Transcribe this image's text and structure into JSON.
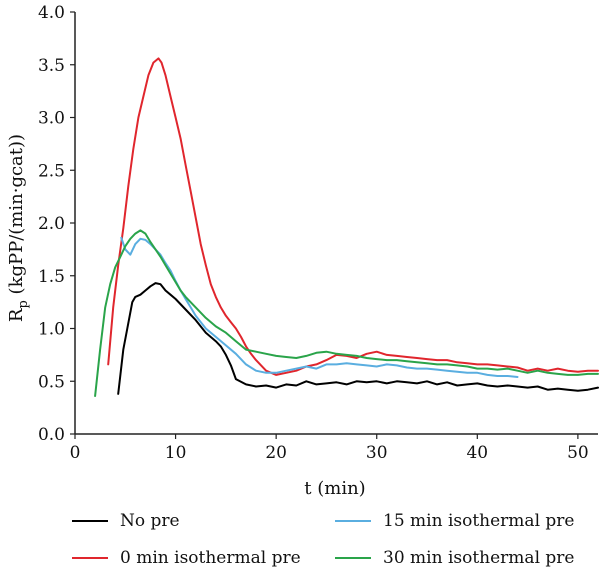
{
  "chart_data": {
    "type": "line",
    "title": "",
    "xlabel": "t (min)",
    "ylabel": "R",
    "ylabel_sub": "p",
    "ylabel_rest": " (kgPP/(min·gcat))",
    "xlim": [
      0,
      52
    ],
    "ylim": [
      0,
      4.0
    ],
    "xticks": [
      "0",
      "10",
      "20",
      "30",
      "40",
      "50"
    ],
    "xtick_values": [
      0,
      10,
      20,
      30,
      40,
      50
    ],
    "yticks": [
      "0.0",
      "0.5",
      "1.0",
      "1.5",
      "2.0",
      "2.5",
      "3.0",
      "3.5",
      "4.0"
    ],
    "ytick_values": [
      0,
      0.5,
      1.0,
      1.5,
      2.0,
      2.5,
      3.0,
      3.5,
      4.0
    ],
    "grid": false,
    "legend_position": "bottom",
    "series": [
      {
        "name": "No pre",
        "color": "#000000",
        "x": [
          4.3,
          4.8,
          5.2,
          5.7,
          6.0,
          6.5,
          7.0,
          7.5,
          8.0,
          8.5,
          9.0,
          9.5,
          10.0,
          11.0,
          12.0,
          13.0,
          14.0,
          14.5,
          15.0,
          15.5,
          16.0,
          17.0,
          18.0,
          19.0,
          20.0,
          21.0,
          22.0,
          23.0,
          24.0,
          25.0,
          26.0,
          27.0,
          28.0,
          29.0,
          30.0,
          31.0,
          32.0,
          33.0,
          34.0,
          35.0,
          36.0,
          37.0,
          38.0,
          39.0,
          40.0,
          41.0,
          42.0,
          43.0,
          44.0,
          45.0,
          46.0,
          47.0,
          48.0,
          49.0,
          50.0,
          51.0,
          52.0
        ],
        "y": [
          0.38,
          0.8,
          1.0,
          1.25,
          1.3,
          1.32,
          1.36,
          1.4,
          1.43,
          1.42,
          1.36,
          1.32,
          1.28,
          1.18,
          1.08,
          0.96,
          0.88,
          0.83,
          0.75,
          0.65,
          0.52,
          0.47,
          0.45,
          0.46,
          0.44,
          0.47,
          0.46,
          0.5,
          0.47,
          0.48,
          0.49,
          0.47,
          0.5,
          0.49,
          0.5,
          0.48,
          0.5,
          0.49,
          0.48,
          0.5,
          0.47,
          0.49,
          0.46,
          0.47,
          0.48,
          0.46,
          0.45,
          0.46,
          0.45,
          0.44,
          0.45,
          0.42,
          0.43,
          0.42,
          0.41,
          0.42,
          0.44
        ]
      },
      {
        "name": "0 min isothermal pre",
        "color": "#e0262d",
        "x": [
          3.3,
          3.8,
          4.3,
          4.8,
          5.3,
          5.8,
          6.3,
          6.8,
          7.3,
          7.8,
          8.3,
          8.6,
          9.0,
          9.5,
          10.0,
          10.5,
          11.0,
          11.5,
          12.0,
          12.5,
          13.0,
          13.5,
          14.0,
          14.5,
          15.0,
          15.5,
          16.0,
          16.5,
          17.0,
          17.5,
          18.0,
          19.0,
          20.0,
          21.0,
          22.0,
          23.0,
          24.0,
          25.0,
          26.0,
          27.0,
          28.0,
          29.0,
          30.0,
          31.0,
          32.0,
          33.0,
          34.0,
          35.0,
          36.0,
          37.0,
          38.0,
          39.0,
          40.0,
          41.0,
          42.0,
          43.0,
          44.0,
          45.0,
          46.0,
          47.0,
          48.0,
          49.0,
          50.0,
          51.0,
          52.0
        ],
        "y": [
          0.66,
          1.2,
          1.6,
          1.95,
          2.35,
          2.7,
          3.0,
          3.2,
          3.4,
          3.52,
          3.56,
          3.52,
          3.4,
          3.2,
          3.0,
          2.8,
          2.55,
          2.3,
          2.05,
          1.8,
          1.6,
          1.42,
          1.3,
          1.2,
          1.12,
          1.06,
          1.0,
          0.92,
          0.83,
          0.76,
          0.7,
          0.6,
          0.56,
          0.58,
          0.6,
          0.64,
          0.66,
          0.7,
          0.75,
          0.74,
          0.72,
          0.76,
          0.78,
          0.75,
          0.74,
          0.73,
          0.72,
          0.71,
          0.7,
          0.7,
          0.68,
          0.67,
          0.66,
          0.66,
          0.65,
          0.64,
          0.63,
          0.6,
          0.62,
          0.6,
          0.62,
          0.6,
          0.59,
          0.6,
          0.6
        ]
      },
      {
        "name": "15 min isothermal pre",
        "color": "#5aaee0",
        "x": [
          4.6,
          5.0,
          5.5,
          6.0,
          6.5,
          7.0,
          7.5,
          8.0,
          8.5,
          9.0,
          9.5,
          10.0,
          10.5,
          11.0,
          11.5,
          12.0,
          13.0,
          14.0,
          15.0,
          16.0,
          17.0,
          18.0,
          19.0,
          20.0,
          21.0,
          22.0,
          23.0,
          24.0,
          25.0,
          26.0,
          27.0,
          28.0,
          29.0,
          30.0,
          31.0,
          32.0,
          33.0,
          34.0,
          35.0,
          36.0,
          37.0,
          38.0,
          39.0,
          40.0,
          41.0,
          42.0,
          43.0,
          44.0
        ],
        "y": [
          1.86,
          1.75,
          1.7,
          1.8,
          1.85,
          1.84,
          1.8,
          1.75,
          1.7,
          1.62,
          1.55,
          1.45,
          1.36,
          1.28,
          1.2,
          1.12,
          1.0,
          0.92,
          0.84,
          0.76,
          0.66,
          0.6,
          0.58,
          0.58,
          0.6,
          0.62,
          0.64,
          0.62,
          0.66,
          0.66,
          0.67,
          0.66,
          0.65,
          0.64,
          0.66,
          0.65,
          0.63,
          0.62,
          0.62,
          0.61,
          0.6,
          0.59,
          0.58,
          0.58,
          0.56,
          0.55,
          0.55,
          0.54
        ]
      },
      {
        "name": "30 min isothermal pre",
        "color": "#2aa44a",
        "x": [
          2.0,
          2.5,
          3.0,
          3.5,
          4.0,
          4.5,
          5.0,
          5.5,
          6.0,
          6.5,
          7.0,
          7.5,
          8.0,
          8.5,
          9.0,
          9.5,
          10.0,
          10.5,
          11.0,
          12.0,
          13.0,
          14.0,
          15.0,
          16.0,
          17.0,
          18.0,
          19.0,
          20.0,
          21.0,
          22.0,
          23.0,
          24.0,
          25.0,
          26.0,
          27.0,
          28.0,
          29.0,
          30.0,
          31.0,
          32.0,
          33.0,
          34.0,
          35.0,
          36.0,
          37.0,
          38.0,
          39.0,
          40.0,
          41.0,
          42.0,
          43.0,
          44.0,
          45.0,
          46.0,
          47.0,
          48.0,
          49.0,
          50.0,
          51.0,
          52.0
        ],
        "y": [
          0.36,
          0.8,
          1.2,
          1.42,
          1.58,
          1.68,
          1.78,
          1.85,
          1.9,
          1.93,
          1.9,
          1.82,
          1.75,
          1.68,
          1.6,
          1.52,
          1.44,
          1.36,
          1.3,
          1.2,
          1.1,
          1.02,
          0.96,
          0.88,
          0.8,
          0.78,
          0.76,
          0.74,
          0.73,
          0.72,
          0.74,
          0.77,
          0.78,
          0.76,
          0.75,
          0.74,
          0.72,
          0.71,
          0.7,
          0.7,
          0.69,
          0.68,
          0.67,
          0.66,
          0.66,
          0.65,
          0.64,
          0.62,
          0.62,
          0.61,
          0.62,
          0.6,
          0.58,
          0.6,
          0.58,
          0.57,
          0.56,
          0.56,
          0.57,
          0.57
        ]
      }
    ]
  }
}
